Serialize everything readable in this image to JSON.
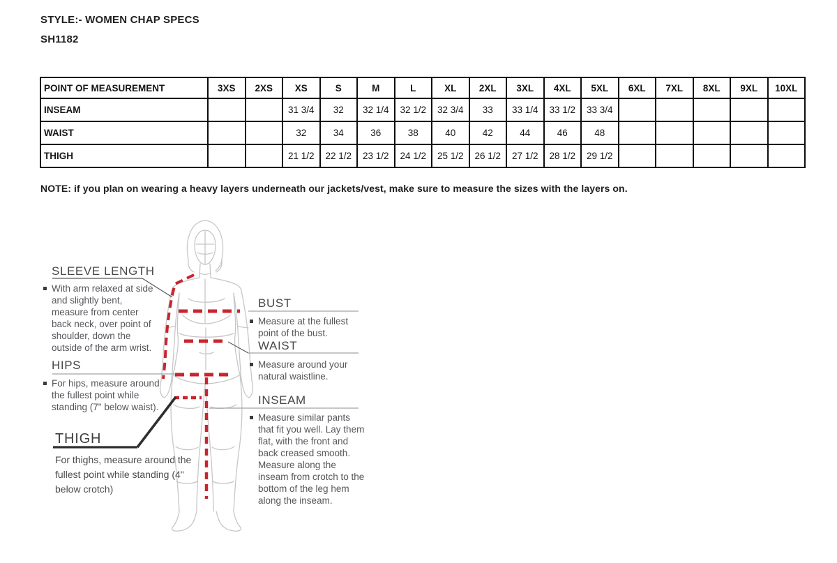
{
  "page": {
    "style_line": "STYLE:- WOMEN CHAP SPECS",
    "sku": "SH1182",
    "note": "NOTE: if you plan on wearing a heavy layers underneath our jackets/vest, make sure to measure the sizes with the layers on."
  },
  "size_table": {
    "header": [
      "POINT OF MEASUREMENT",
      "3XS",
      "2XS",
      "XS",
      "S",
      "M",
      "L",
      "XL",
      "2XL",
      "3XL",
      "4XL",
      "5XL",
      "6XL",
      "7XL",
      "8XL",
      "9XL",
      "10XL"
    ],
    "rows": [
      {
        "label": "INSEAM",
        "values": [
          "",
          "",
          "31 3/4",
          "32",
          "32 1/4",
          "32 1/2",
          "32 3/4",
          "33",
          "33 1/4",
          "33 1/2",
          "33 3/4",
          "",
          "",
          "",
          "",
          ""
        ]
      },
      {
        "label": "WAIST",
        "values": [
          "",
          "",
          "32",
          "34",
          "36",
          "38",
          "40",
          "42",
          "44",
          "46",
          "48",
          "",
          "",
          "",
          "",
          ""
        ]
      },
      {
        "label": "THIGH",
        "values": [
          "",
          "",
          "21 1/2",
          "22 1/2",
          "23 1/2",
          "24 1/2",
          "25 1/2",
          "26 1/2",
          "27 1/2",
          "28 1/2",
          "29 1/2",
          "",
          "",
          "",
          "",
          ""
        ]
      }
    ]
  },
  "diagram": {
    "labels": {
      "sleeve_length": {
        "title": "SLEEVE LENGTH",
        "desc": "With arm relaxed at side and slightly bent, measure from center back neck, over point of shoulder, down the outside of the arm wrist."
      },
      "hips": {
        "title": "HIPS",
        "desc": "For hips, measure around the fullest point while standing (7\" below waist)."
      },
      "thigh": {
        "title": "THIGH",
        "desc": "For thighs, measure around the fullest point while standing (4\" below crotch)"
      },
      "bust": {
        "title": "BUST",
        "desc": "Measure at the fullest point of the bust."
      },
      "waist": {
        "title": "WAIST",
        "desc": "Measure around your natural waistline."
      },
      "inseam": {
        "title": "INSEAM",
        "desc": "Measure similar pants that fit you well. Lay them flat, with the front and back creased smooth. Measure along the inseam from crotch to the bottom of the leg hem along the inseam."
      }
    },
    "colors": {
      "measure_line": "#c9252e",
      "figure_outline": "#c7c7c9",
      "label_text": "#48484a"
    }
  }
}
